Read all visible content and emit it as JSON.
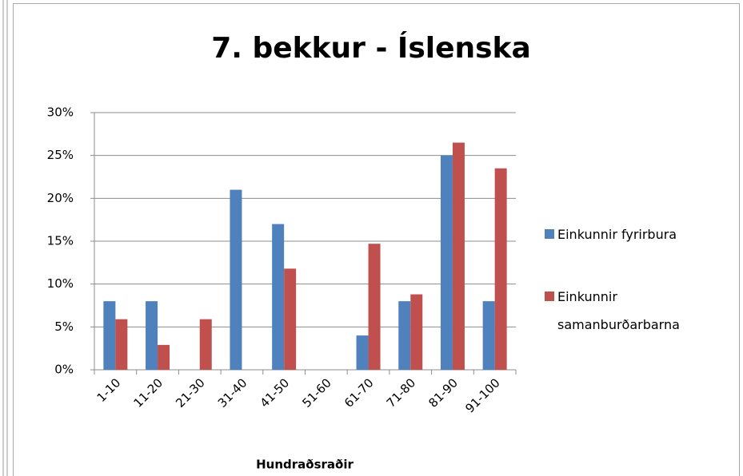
{
  "chart_data": {
    "type": "bar",
    "title": "7. bekkur - Íslenska",
    "x_label": "Hundraðsraðir",
    "categories": [
      "1-10",
      "11-20",
      "21-30",
      "31-40",
      "41-50",
      "51-60",
      "61-70",
      "71-80",
      "81-90",
      "91-100"
    ],
    "series": [
      {
        "name": "Einkunnir fyrirbura",
        "color": "#4f81bd",
        "values": [
          8,
          8,
          0,
          21,
          17,
          0,
          4,
          8,
          25,
          8
        ]
      },
      {
        "name": "Einkunnir samanburðarbarna",
        "color": "#c0504d",
        "values": [
          5.9,
          2.9,
          5.9,
          0,
          11.8,
          0,
          14.7,
          8.8,
          26.5,
          23.5
        ]
      }
    ],
    "ylim": [
      0,
      30
    ],
    "yticks": [
      {
        "value": 0,
        "label": "0%"
      },
      {
        "value": 5,
        "label": "5%"
      },
      {
        "value": 10,
        "label": "10%"
      },
      {
        "value": 15,
        "label": "15%"
      },
      {
        "value": 20,
        "label": "20%"
      },
      {
        "value": 25,
        "label": "25%"
      },
      {
        "value": 30,
        "label": "30%"
      }
    ],
    "grid": true,
    "legend": "right"
  }
}
